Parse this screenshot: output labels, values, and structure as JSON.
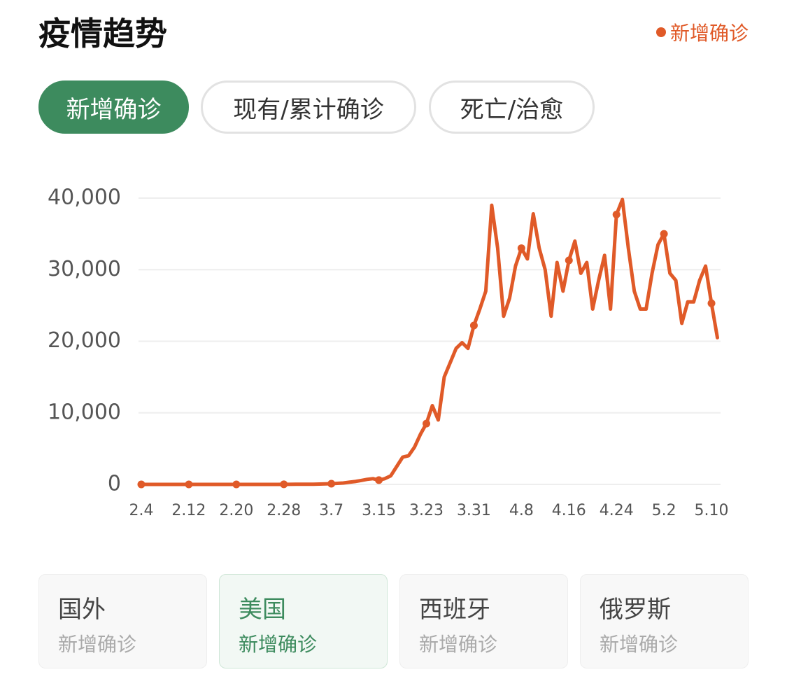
{
  "header": {
    "title": "疫情趋势"
  },
  "tabs": [
    {
      "label": "新增确诊",
      "active": true
    },
    {
      "label": "现有/累计确诊",
      "active": false
    },
    {
      "label": "死亡/治愈",
      "active": false
    }
  ],
  "chart_data": {
    "type": "line",
    "categories": [
      "2.4",
      null,
      null,
      null,
      null,
      null,
      null,
      null,
      "2.12",
      null,
      null,
      null,
      null,
      null,
      null,
      null,
      "2.20",
      null,
      null,
      null,
      null,
      null,
      null,
      null,
      "2.28",
      null,
      null,
      null,
      null,
      null,
      null,
      null,
      "3.7",
      null,
      null,
      null,
      null,
      null,
      null,
      null,
      "3.15",
      null,
      null,
      null,
      null,
      null,
      null,
      null,
      "3.23",
      null,
      null,
      null,
      null,
      null,
      null,
      null,
      "3.31",
      null,
      null,
      null,
      null,
      null,
      null,
      null,
      "4.8",
      null,
      null,
      null,
      null,
      null,
      null,
      null,
      "4.16",
      null,
      null,
      null,
      null,
      null,
      null,
      null,
      "4.24",
      null,
      null,
      null,
      null,
      null,
      null,
      null,
      "5.2",
      null,
      null,
      null,
      null,
      null,
      null,
      null,
      "5.10",
      null
    ],
    "series": [
      {
        "name": "新增确诊",
        "color": "#e05a28",
        "values": [
          0,
          0,
          0,
          0,
          1,
          0,
          0,
          0,
          0,
          0,
          1,
          0,
          0,
          0,
          0,
          1,
          0,
          0,
          0,
          2,
          0,
          0,
          0,
          3,
          8,
          10,
          15,
          20,
          25,
          30,
          50,
          70,
          100,
          150,
          200,
          300,
          400,
          550,
          700,
          800,
          600,
          800,
          1200,
          2500,
          3800,
          4000,
          5200,
          7000,
          8500,
          11000,
          9000,
          15000,
          17000,
          19000,
          19800,
          19000,
          22200,
          24500,
          27000,
          39000,
          33000,
          23500,
          26000,
          30500,
          33000,
          31500,
          37800,
          33000,
          30000,
          23500,
          31000,
          27000,
          31300,
          34000,
          29500,
          31000,
          24500,
          28500,
          32000,
          24500,
          37700,
          39800,
          33000,
          27000,
          24500,
          24500,
          29500,
          33500,
          35000,
          29500,
          28500,
          22500,
          25500,
          25500,
          28500,
          30500,
          25300,
          20500
        ]
      }
    ],
    "ylim": [
      0,
      40000
    ],
    "yticks": [
      0,
      {
        "value": 10000,
        "label": "10,000"
      },
      {
        "value": 20000,
        "label": "20,000"
      },
      {
        "value": 30000,
        "label": "30,000"
      },
      {
        "value": 40000,
        "label": "40,000"
      }
    ],
    "grid": true
  },
  "cards": [
    {
      "title": "国外",
      "subtitle": "新增确诊",
      "active": false
    },
    {
      "title": "美国",
      "subtitle": "新增确诊",
      "active": true
    },
    {
      "title": "西班牙",
      "subtitle": "新增确诊",
      "active": false
    },
    {
      "title": "俄罗斯",
      "subtitle": "新增确诊",
      "active": false
    }
  ]
}
